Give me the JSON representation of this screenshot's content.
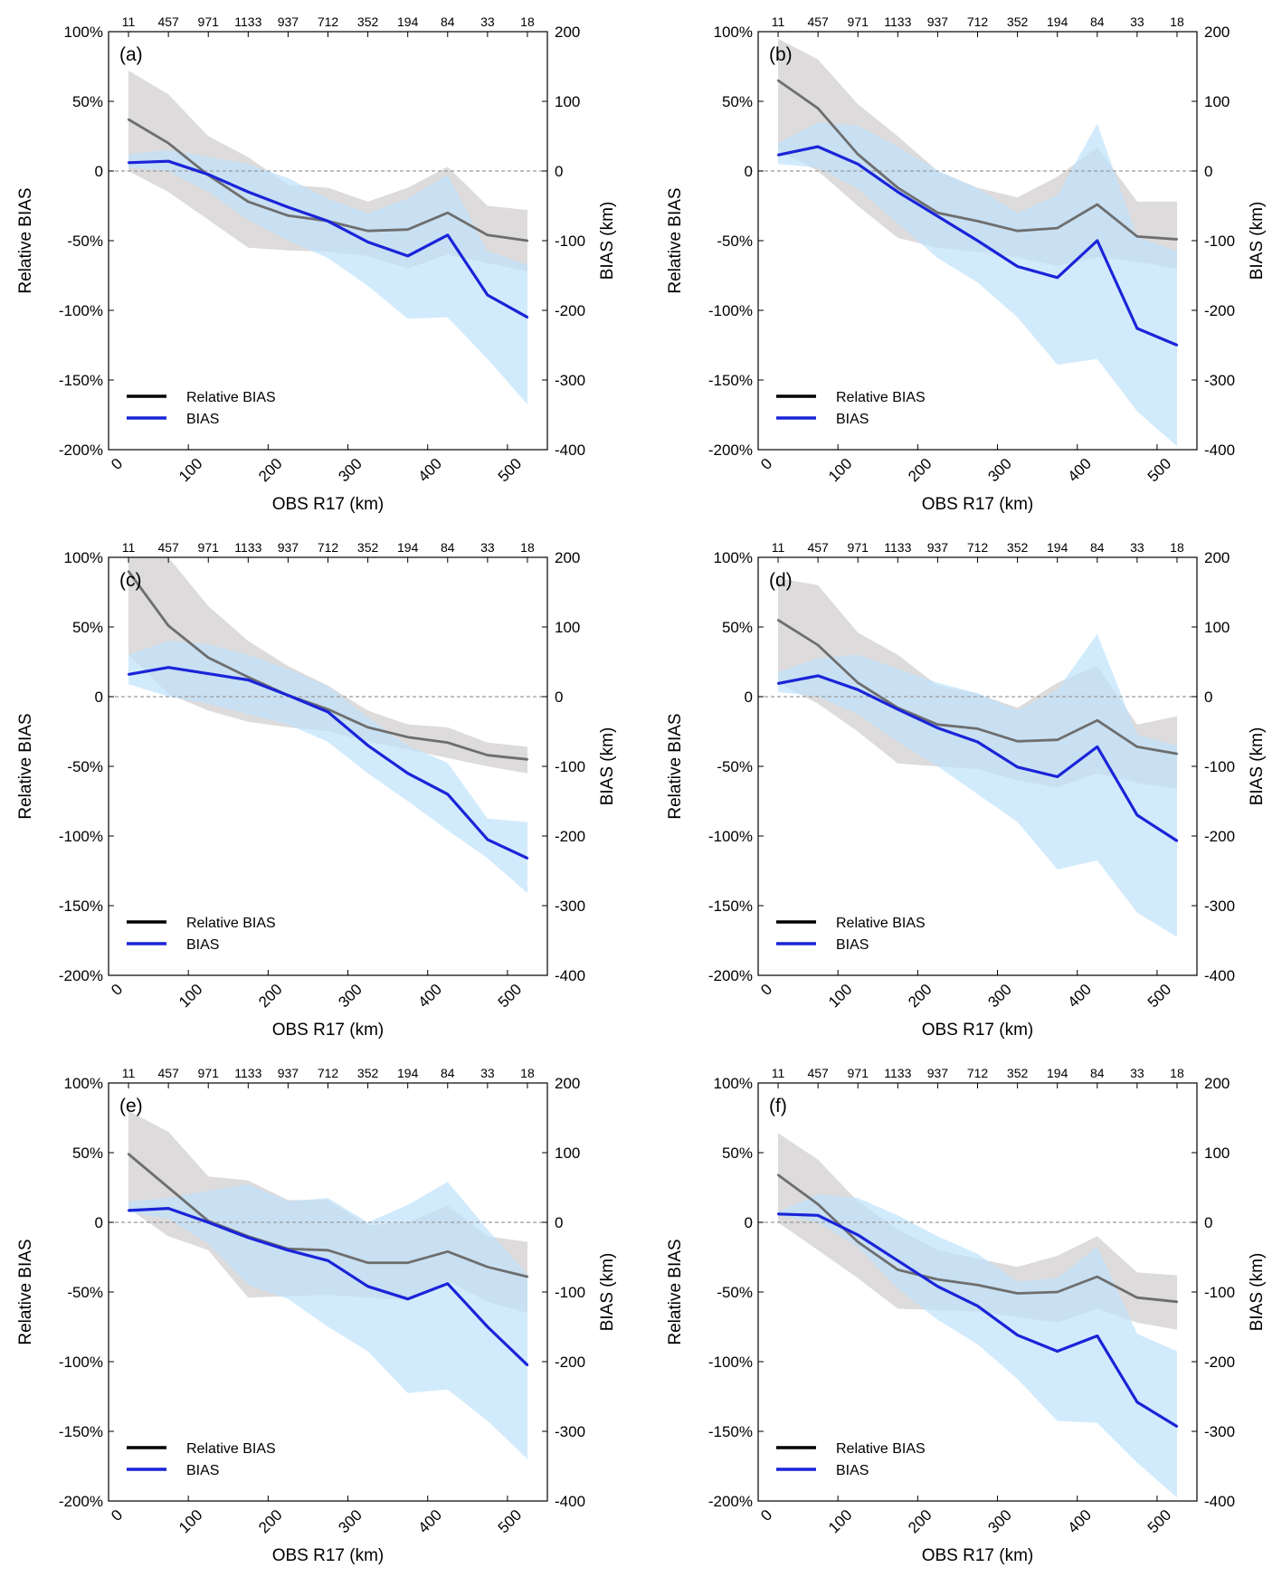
{
  "chart_data": [
    {
      "type": "line",
      "panel_label": "(a)",
      "xlabel": "OBS R17 (km)",
      "ylabel_left": "Relative BIAS",
      "ylabel_right": "BIAS (km)",
      "x": [
        25,
        75,
        125,
        175,
        225,
        275,
        325,
        375,
        425,
        475,
        525
      ],
      "top_counts": [
        "11",
        "457",
        "971",
        "1133",
        "937",
        "712",
        "352",
        "194",
        "84",
        "33",
        "18"
      ],
      "series": [
        {
          "name": "Relative BIAS",
          "axis": "left",
          "color": "#6e6e6e",
          "values": [
            37,
            20,
            -3,
            -22,
            -32,
            -36,
            -43,
            -42,
            -30,
            -46,
            -50
          ],
          "band_low": [
            0,
            -15,
            -35,
            -55,
            -57,
            -58,
            -61,
            -70,
            -60,
            -66,
            -72
          ],
          "band_high": [
            72,
            55,
            25,
            10,
            -10,
            -12,
            -22,
            -12,
            3,
            -25,
            -28
          ]
        },
        {
          "name": "BIAS",
          "axis": "right",
          "color": "#1a24d8",
          "values": [
            12,
            14,
            -5,
            -30,
            -52,
            -72,
            -102,
            -122,
            -92,
            -178,
            -210
          ],
          "band_low": [
            5,
            0,
            -30,
            -70,
            -100,
            -125,
            -165,
            -212,
            -210,
            -270,
            -335
          ],
          "band_high": [
            24,
            30,
            20,
            10,
            -10,
            -40,
            -60,
            -40,
            -5,
            -115,
            -135
          ]
        }
      ],
      "ylim_left": [
        -200,
        100
      ],
      "ylim_right": [
        -400,
        200
      ],
      "xlim": [
        0,
        550
      ],
      "xticks": [
        0,
        100,
        200,
        300,
        400,
        500
      ],
      "yticks_left": [
        "100%",
        "50%",
        "0",
        "-50%",
        "-100%",
        "-150%",
        "-200%"
      ],
      "yticks_right": [
        "200",
        "100",
        "0",
        "-100",
        "-200",
        "-300",
        "-400"
      ],
      "zero_line": "dashed",
      "legend_position": "bottom-left"
    },
    {
      "type": "line",
      "panel_label": "(b)",
      "xlabel": "OBS R17 (km)",
      "ylabel_left": "Relative BIAS",
      "ylabel_right": "BIAS (km)",
      "x": [
        25,
        75,
        125,
        175,
        225,
        275,
        325,
        375,
        425,
        475,
        525
      ],
      "top_counts": [
        "11",
        "457",
        "971",
        "1133",
        "937",
        "712",
        "352",
        "194",
        "84",
        "33",
        "18"
      ],
      "series": [
        {
          "name": "Relative BIAS",
          "axis": "left",
          "color": "#6e6e6e",
          "values": [
            65,
            45,
            12,
            -12,
            -30,
            -36,
            -43,
            -41,
            -24,
            -47,
            -49
          ],
          "band_low": [
            15,
            0,
            -25,
            -48,
            -55,
            -58,
            -62,
            -68,
            -62,
            -65,
            -70
          ],
          "band_high": [
            95,
            80,
            48,
            25,
            0,
            -12,
            -19,
            -4,
            17,
            -22,
            -22
          ]
        },
        {
          "name": "BIAS",
          "axis": "right",
          "color": "#1a24d8",
          "values": [
            23,
            35,
            10,
            -30,
            -65,
            -100,
            -137,
            -153,
            -100,
            -226,
            -250
          ],
          "band_low": [
            10,
            5,
            -25,
            -75,
            -125,
            -160,
            -210,
            -278,
            -270,
            -345,
            -395
          ],
          "band_high": [
            40,
            70,
            65,
            35,
            0,
            -25,
            -60,
            -35,
            68,
            -95,
            -115
          ]
        }
      ],
      "ylim_left": [
        -200,
        100
      ],
      "ylim_right": [
        -400,
        200
      ],
      "xlim": [
        0,
        550
      ],
      "xticks": [
        0,
        100,
        200,
        300,
        400,
        500
      ],
      "yticks_left": [
        "100%",
        "50%",
        "0",
        "-50%",
        "-100%",
        "-150%",
        "-200%"
      ],
      "yticks_right": [
        "200",
        "100",
        "0",
        "-100",
        "-200",
        "-300",
        "-400"
      ],
      "zero_line": "dashed",
      "legend_position": "bottom-left"
    },
    {
      "type": "line",
      "panel_label": "(c)",
      "xlabel": "OBS R17 (km)",
      "ylabel_left": "Relative BIAS",
      "ylabel_right": "BIAS (km)",
      "x": [
        25,
        75,
        125,
        175,
        225,
        275,
        325,
        375,
        425,
        475,
        525
      ],
      "top_counts": [
        "11",
        "457",
        "971",
        "1133",
        "937",
        "712",
        "352",
        "194",
        "84",
        "33",
        "18"
      ],
      "series": [
        {
          "name": "Relative BIAS",
          "axis": "left",
          "color": "#6e6e6e",
          "values": [
            90,
            51,
            28,
            14,
            1,
            -9,
            -22,
            -29,
            -33,
            -42,
            -45
          ],
          "band_low": [
            30,
            2,
            -10,
            -18,
            -22,
            -25,
            -32,
            -38,
            -44,
            -50,
            -55
          ],
          "band_high": [
            100,
            100,
            65,
            40,
            22,
            8,
            -10,
            -20,
            -22,
            -33,
            -36
          ]
        },
        {
          "name": "BIAS",
          "axis": "right",
          "color": "#1a24d8",
          "values": [
            32,
            42,
            33,
            24,
            2,
            -22,
            -70,
            -110,
            -140,
            -205,
            -232
          ],
          "band_low": [
            18,
            0,
            -10,
            -25,
            -40,
            -65,
            -110,
            -150,
            -192,
            -232,
            -282
          ],
          "band_high": [
            60,
            80,
            75,
            60,
            40,
            15,
            -30,
            -70,
            -95,
            -175,
            -180
          ]
        }
      ],
      "ylim_left": [
        -200,
        100
      ],
      "ylim_right": [
        -400,
        200
      ],
      "xlim": [
        0,
        550
      ],
      "xticks": [
        0,
        100,
        200,
        300,
        400,
        500
      ],
      "yticks_left": [
        "100%",
        "50%",
        "0",
        "-50%",
        "-100%",
        "-150%",
        "-200%"
      ],
      "yticks_right": [
        "200",
        "100",
        "0",
        "-100",
        "-200",
        "-300",
        "-400"
      ],
      "zero_line": "dashed",
      "legend_position": "bottom-left"
    },
    {
      "type": "line",
      "panel_label": "(d)",
      "xlabel": "OBS R17 (km)",
      "ylabel_left": "Relative BIAS",
      "ylabel_right": "BIAS (km)",
      "x": [
        25,
        75,
        125,
        175,
        225,
        275,
        325,
        375,
        425,
        475,
        525
      ],
      "top_counts": [
        "11",
        "457",
        "971",
        "1133",
        "937",
        "712",
        "352",
        "194",
        "84",
        "33",
        "18"
      ],
      "series": [
        {
          "name": "Relative BIAS",
          "axis": "left",
          "color": "#6e6e6e",
          "values": [
            55,
            37,
            10,
            -8,
            -20,
            -23,
            -32,
            -31,
            -17,
            -36,
            -41
          ],
          "band_low": [
            10,
            -5,
            -25,
            -48,
            -50,
            -52,
            -60,
            -65,
            -55,
            -62,
            -66
          ],
          "band_high": [
            85,
            80,
            46,
            30,
            8,
            2,
            -8,
            10,
            22,
            -20,
            -14
          ]
        },
        {
          "name": "BIAS",
          "axis": "right",
          "color": "#1a24d8",
          "values": [
            19,
            30,
            10,
            -18,
            -45,
            -65,
            -101,
            -115,
            -72,
            -170,
            -207
          ],
          "band_low": [
            7,
            0,
            -25,
            -65,
            -100,
            -140,
            -180,
            -248,
            -235,
            -310,
            -345
          ],
          "band_high": [
            35,
            55,
            60,
            40,
            20,
            5,
            -20,
            10,
            90,
            -55,
            -70
          ]
        }
      ],
      "ylim_left": [
        -200,
        100
      ],
      "ylim_right": [
        -400,
        200
      ],
      "xlim": [
        0,
        550
      ],
      "xticks": [
        0,
        100,
        200,
        300,
        400,
        500
      ],
      "yticks_left": [
        "100%",
        "50%",
        "0",
        "-50%",
        "-100%",
        "-150%",
        "-200%"
      ],
      "yticks_right": [
        "200",
        "100",
        "0",
        "-100",
        "-200",
        "-300",
        "-400"
      ],
      "zero_line": "dashed",
      "legend_position": "bottom-left"
    },
    {
      "type": "line",
      "panel_label": "(e)",
      "xlabel": "OBS R17 (km)",
      "ylabel_left": "Relative BIAS",
      "ylabel_right": "BIAS (km)",
      "x": [
        25,
        75,
        125,
        175,
        225,
        275,
        325,
        375,
        425,
        475,
        525
      ],
      "top_counts": [
        "11",
        "457",
        "971",
        "1133",
        "937",
        "712",
        "352",
        "194",
        "84",
        "33",
        "18"
      ],
      "series": [
        {
          "name": "Relative BIAS",
          "axis": "left",
          "color": "#6e6e6e",
          "values": [
            49,
            25,
            1,
            -10,
            -19,
            -20,
            -29,
            -29,
            -21,
            -32,
            -39
          ],
          "band_low": [
            10,
            -10,
            -20,
            -54,
            -53,
            -52,
            -54,
            -56,
            -42,
            -57,
            -65
          ],
          "band_high": [
            80,
            65,
            33,
            30,
            16,
            16,
            -2,
            0,
            12,
            -10,
            -14
          ]
        },
        {
          "name": "BIAS",
          "axis": "right",
          "color": "#1a24d8",
          "values": [
            17,
            20,
            0,
            -22,
            -40,
            -55,
            -92,
            -110,
            -88,
            -150,
            -205
          ],
          "band_low": [
            15,
            5,
            -30,
            -90,
            -110,
            -150,
            -185,
            -245,
            -240,
            -285,
            -340
          ],
          "band_high": [
            30,
            35,
            45,
            55,
            30,
            35,
            0,
            25,
            58,
            -10,
            -75
          ]
        }
      ],
      "ylim_left": [
        -200,
        100
      ],
      "ylim_right": [
        -400,
        200
      ],
      "xlim": [
        0,
        550
      ],
      "xticks": [
        0,
        100,
        200,
        300,
        400,
        500
      ],
      "yticks_left": [
        "100%",
        "50%",
        "0",
        "-50%",
        "-100%",
        "-150%",
        "-200%"
      ],
      "yticks_right": [
        "200",
        "100",
        "0",
        "-100",
        "-200",
        "-300",
        "-400"
      ],
      "zero_line": "dashed",
      "legend_position": "bottom-left"
    },
    {
      "type": "line",
      "panel_label": "(f)",
      "xlabel": "OBS R17 (km)",
      "ylabel_left": "Relative BIAS",
      "ylabel_right": "BIAS (km)",
      "x": [
        25,
        75,
        125,
        175,
        225,
        275,
        325,
        375,
        425,
        475,
        525
      ],
      "top_counts": [
        "11",
        "457",
        "971",
        "1133",
        "937",
        "712",
        "352",
        "194",
        "84",
        "33",
        "18"
      ],
      "series": [
        {
          "name": "Relative BIAS",
          "axis": "left",
          "color": "#6e6e6e",
          "values": [
            34,
            13,
            -14,
            -34,
            -41,
            -45,
            -51,
            -50,
            -39,
            -54,
            -57
          ],
          "band_low": [
            0,
            -20,
            -40,
            -62,
            -63,
            -64,
            -68,
            -72,
            -62,
            -72,
            -77
          ],
          "band_high": [
            64,
            45,
            15,
            -5,
            -20,
            -26,
            -32,
            -24,
            -10,
            -36,
            -38
          ]
        },
        {
          "name": "BIAS",
          "axis": "right",
          "color": "#1a24d8",
          "values": [
            12,
            10,
            -18,
            -55,
            -92,
            -120,
            -162,
            -185,
            -163,
            -258,
            -293
          ],
          "band_low": [
            10,
            0,
            -35,
            -95,
            -140,
            -175,
            -225,
            -285,
            -288,
            -345,
            -395
          ],
          "band_high": [
            15,
            40,
            35,
            10,
            -20,
            -45,
            -85,
            -80,
            -35,
            -160,
            -185
          ]
        }
      ],
      "ylim_left": [
        -200,
        100
      ],
      "ylim_right": [
        -400,
        200
      ],
      "xlim": [
        0,
        550
      ],
      "xticks": [
        0,
        100,
        200,
        300,
        400,
        500
      ],
      "yticks_left": [
        "100%",
        "50%",
        "0",
        "-50%",
        "-100%",
        "-150%",
        "-200%"
      ],
      "yticks_right": [
        "200",
        "100",
        "0",
        "-100",
        "-200",
        "-300",
        "-400"
      ],
      "zero_line": "dashed",
      "legend_position": "bottom-left"
    }
  ],
  "colors": {
    "relative_band": "#d7d5d6",
    "bias_band": "#bfe3fb",
    "relative_line": "#6e6e6e",
    "bias_line": "#1a24d8",
    "zero_line": "#9a9a9a",
    "axis": "#000000"
  }
}
